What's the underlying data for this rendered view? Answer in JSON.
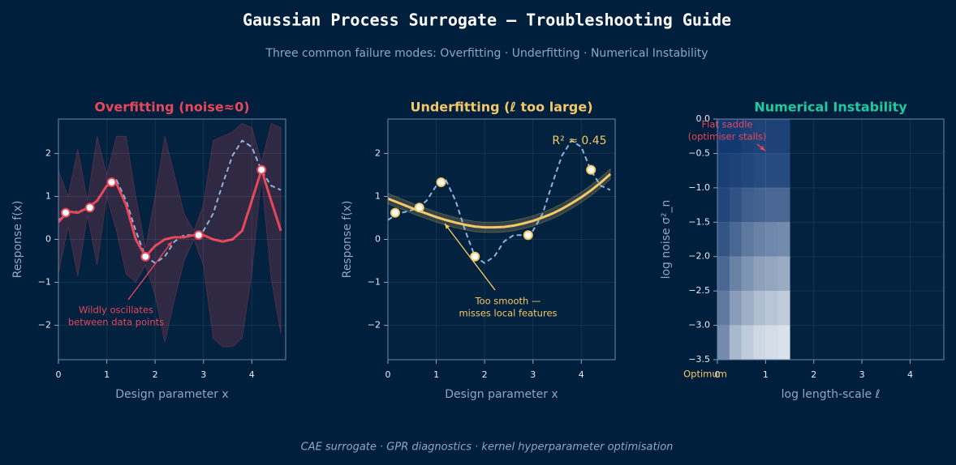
{
  "title": "Gaussian Process Surrogate — Troubleshooting Guide",
  "subtitle": "Three common failure modes: Overfitting  ·  Underfitting  ·  Numerical Instability",
  "footer": "CAE surrogate  ·  GPR diagnostics  ·  kernel hyperparameter optimisation",
  "chart_data": [
    {
      "type": "line",
      "title": "Overfitting  (noise≈0)",
      "title_color": "#e8475a",
      "xlabel": "Design parameter  x",
      "ylabel": "Response  f(x)",
      "xlim": [
        0,
        4.7
      ],
      "ylim": [
        -2.8,
        2.8
      ],
      "xticks": [
        0,
        1,
        2,
        3,
        4
      ],
      "yticks": [
        {
          "value": -2,
          "label": "−2"
        },
        {
          "value": -1,
          "label": "−1"
        },
        0,
        1,
        2
      ],
      "grid": true,
      "x": [
        0,
        0.2,
        0.4,
        0.6,
        0.8,
        1.0,
        1.2,
        1.4,
        1.6,
        1.8,
        2.0,
        2.2,
        2.4,
        2.6,
        2.8,
        3.0,
        3.2,
        3.4,
        3.6,
        3.8,
        4.0,
        4.2,
        4.4,
        4.6
      ],
      "truth": {
        "color": "#8fb3dc",
        "values": [
          0.45,
          0.6,
          0.65,
          0.72,
          0.9,
          1.25,
          1.38,
          0.9,
          0.2,
          -0.4,
          -0.55,
          -0.4,
          -0.05,
          0.1,
          0.1,
          0.2,
          0.6,
          1.3,
          1.95,
          2.3,
          2.15,
          1.6,
          1.25,
          1.15
        ]
      },
      "mean": {
        "color": "#e8475a",
        "values": [
          0.4,
          0.65,
          0.62,
          0.73,
          0.9,
          1.25,
          1.3,
          0.8,
          0.0,
          -0.4,
          -0.15,
          0.0,
          0.05,
          0.05,
          0.1,
          0.1,
          0.0,
          -0.05,
          0.0,
          0.2,
          0.9,
          1.62,
          0.9,
          0.2
        ]
      },
      "band": {
        "color": "#e8475a",
        "upper": [
          1.6,
          1.0,
          2.1,
          0.9,
          2.4,
          1.5,
          2.4,
          2.4,
          1.0,
          -0.2,
          1.0,
          2.4,
          1.5,
          0.6,
          0.2,
          0.8,
          2.3,
          2.4,
          2.5,
          2.7,
          2.6,
          1.8,
          2.7,
          2.6
        ],
        "lower": [
          -0.8,
          0.3,
          -0.86,
          0.56,
          -0.6,
          1.0,
          0.2,
          -0.8,
          -1.0,
          -0.6,
          -1.3,
          -2.4,
          -1.4,
          -0.5,
          0.0,
          -0.6,
          -2.3,
          -2.5,
          -2.5,
          -2.3,
          -0.8,
          1.44,
          -0.9,
          -2.2
        ]
      },
      "points": {
        "color": "#e8475a",
        "x": [
          0.15,
          0.65,
          1.1,
          1.8,
          2.9,
          4.2
        ],
        "y": [
          0.62,
          0.74,
          1.33,
          -0.4,
          0.1,
          1.62
        ]
      },
      "annotations": [
        {
          "color": "#e8475a",
          "lines": [
            "Wildly oscillates",
            "between data points"
          ]
        }
      ]
    },
    {
      "type": "line",
      "title": "Underfitting  (ℓ too large)",
      "title_color": "#f5c867",
      "xlabel": "Design parameter  x",
      "ylabel": "Response  f(x)",
      "xlim": [
        0,
        4.7
      ],
      "ylim": [
        -2.8,
        2.8
      ],
      "xticks": [
        0,
        1,
        2,
        3,
        4
      ],
      "yticks": [
        {
          "value": -2,
          "label": "−2"
        },
        {
          "value": -1,
          "label": "−1"
        },
        0,
        1,
        2
      ],
      "grid": true,
      "x": [
        0,
        0.2,
        0.4,
        0.6,
        0.8,
        1.0,
        1.2,
        1.4,
        1.6,
        1.8,
        2.0,
        2.2,
        2.4,
        2.6,
        2.8,
        3.0,
        3.2,
        3.4,
        3.6,
        3.8,
        4.0,
        4.2,
        4.4,
        4.6
      ],
      "truth": {
        "color": "#8fb3dc",
        "values": [
          0.45,
          0.6,
          0.65,
          0.72,
          0.9,
          1.25,
          1.38,
          0.9,
          0.2,
          -0.4,
          -0.55,
          -0.4,
          -0.05,
          0.1,
          0.1,
          0.2,
          0.6,
          1.3,
          1.95,
          2.3,
          2.15,
          1.6,
          1.25,
          1.15
        ]
      },
      "mean": {
        "color": "#f5c867",
        "values": [
          0.95,
          0.86,
          0.77,
          0.68,
          0.6,
          0.52,
          0.45,
          0.39,
          0.34,
          0.3,
          0.28,
          0.28,
          0.29,
          0.32,
          0.37,
          0.43,
          0.51,
          0.6,
          0.71,
          0.84,
          0.98,
          1.14,
          1.32,
          1.52
        ]
      },
      "band": {
        "color": "#f5c867",
        "upper": [
          1.07,
          0.98,
          0.89,
          0.8,
          0.72,
          0.64,
          0.57,
          0.51,
          0.46,
          0.42,
          0.4,
          0.4,
          0.41,
          0.44,
          0.49,
          0.55,
          0.63,
          0.72,
          0.83,
          0.96,
          1.1,
          1.26,
          1.44,
          1.64
        ],
        "lower": [
          0.83,
          0.74,
          0.65,
          0.56,
          0.48,
          0.4,
          0.33,
          0.27,
          0.22,
          0.18,
          0.16,
          0.16,
          0.17,
          0.2,
          0.25,
          0.31,
          0.39,
          0.48,
          0.59,
          0.72,
          0.86,
          1.02,
          1.2,
          1.4
        ]
      },
      "points": {
        "color": "#f5c867",
        "x": [
          0.15,
          0.65,
          1.1,
          1.8,
          2.9,
          4.2
        ],
        "y": [
          0.62,
          0.74,
          1.33,
          -0.4,
          0.1,
          1.62
        ]
      },
      "annotations": [
        {
          "color": "#f5c867",
          "lines": [
            "R² ≈ 0.45"
          ]
        },
        {
          "color": "#f5c867",
          "lines": [
            "Too smooth —",
            "misses local features"
          ]
        }
      ]
    },
    {
      "type": "heatmap",
      "title": "Numerical Instability",
      "title_color": "#1fc9a0",
      "xlabel": "log  length-scale  ℓ",
      "ylabel": "log  noise  σ²_n",
      "xlim": [
        0,
        4.7
      ],
      "ylim": [
        -3.5,
        0
      ],
      "xticks": [
        0,
        1,
        2,
        3,
        4
      ],
      "yticks": [
        {
          "value": -3.5,
          "label": "−3.5"
        },
        {
          "value": -3,
          "label": "−3.0"
        },
        {
          "value": -2.5,
          "label": "−2.5"
        },
        {
          "value": -2,
          "label": "−2.0"
        },
        {
          "value": -1.5,
          "label": "−1.5"
        },
        {
          "value": -1,
          "label": "−1.0"
        },
        {
          "value": -0.5,
          "label": "−0.5"
        },
        {
          "value": 0,
          "label": "0.0"
        }
      ],
      "grid": true,
      "x_edges": [
        0,
        0.25,
        0.5,
        0.75,
        1.0,
        1.25,
        1.5
      ],
      "y_edges": [
        0,
        -0.5,
        -1.0,
        -1.5,
        -2.0,
        -2.5,
        -3.0,
        -3.5
      ],
      "colors": [
        "#08306b",
        "#dfe6ee"
      ],
      "z": [
        [
          0.05,
          0.05,
          0.08,
          0.1,
          0.1,
          0.1
        ],
        [
          0.08,
          0.1,
          0.12,
          0.15,
          0.15,
          0.15
        ],
        [
          0.12,
          0.18,
          0.25,
          0.28,
          0.3,
          0.3
        ],
        [
          0.2,
          0.3,
          0.4,
          0.45,
          0.48,
          0.5
        ],
        [
          0.3,
          0.45,
          0.55,
          0.62,
          0.65,
          0.68
        ],
        [
          0.4,
          0.6,
          0.7,
          0.78,
          0.82,
          0.85
        ],
        [
          0.5,
          0.75,
          0.85,
          0.92,
          0.95,
          0.97
        ]
      ],
      "annotations": [
        {
          "color": "#e8475a",
          "lines": [
            "Flat saddle",
            "(optimiser stalls)"
          ]
        },
        {
          "color": "#f5c867",
          "lines": [
            "Optimum"
          ]
        }
      ]
    }
  ]
}
